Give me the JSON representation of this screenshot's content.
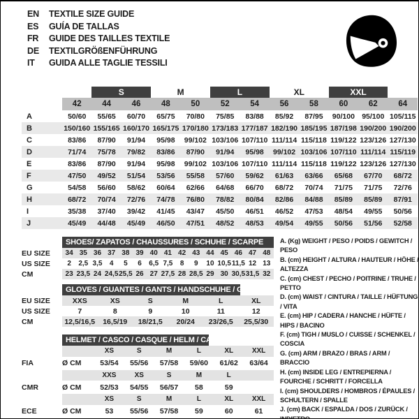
{
  "header": {
    "languages": [
      {
        "code": "EN",
        "label": "TEXTILE SIZE GUIDE"
      },
      {
        "code": "ES",
        "label": "GUÍA DE TALLAS"
      },
      {
        "code": "FR",
        "label": "GUIDE DES TAILLES TEXTILE"
      },
      {
        "code": "DE",
        "label": "TEXTILGRÖßENFÜHRUNG"
      },
      {
        "code": "IT",
        "label": "GUIDA ALLE TAGLIE TESSILI"
      }
    ],
    "logo_icon": "helmet-icon"
  },
  "colors": {
    "band_dark": "#3f3f3f",
    "numbers_row_gray": "#bfbfbf",
    "stripe_gray": "#e9e9e9",
    "subtable_gray": "#e3e3e3"
  },
  "main_table": {
    "size_bands": [
      {
        "label": "S",
        "dark": true
      },
      {
        "label": "M",
        "dark": false
      },
      {
        "label": "L",
        "dark": true
      },
      {
        "label": "XL",
        "dark": false
      },
      {
        "label": "XXL",
        "dark": true
      }
    ],
    "columns": [
      "42",
      "44",
      "46",
      "48",
      "50",
      "52",
      "54",
      "56",
      "58",
      "60",
      "62",
      "64"
    ],
    "rows": [
      {
        "letter": "A",
        "values": [
          "50/60",
          "55/65",
          "60/70",
          "65/75",
          "70/80",
          "75/85",
          "83/88",
          "85/92",
          "87/95",
          "90/100",
          "95/100",
          "105/115"
        ]
      },
      {
        "letter": "B",
        "values": [
          "150/160",
          "155/165",
          "160/170",
          "165/175",
          "170/180",
          "173/183",
          "177/187",
          "182/190",
          "185/195",
          "187/198",
          "190/200",
          "190/200"
        ]
      },
      {
        "letter": "C",
        "values": [
          "83/86",
          "87/90",
          "91/94",
          "95/98",
          "99/102",
          "103/106",
          "107/110",
          "111/114",
          "115/118",
          "119/122",
          "123/126",
          "127/130"
        ]
      },
      {
        "letter": "D",
        "values": [
          "71/74",
          "75/78",
          "79/82",
          "83/86",
          "87/90",
          "91/94",
          "95/98",
          "99/102",
          "103/106",
          "107/110",
          "111/114",
          "115/119"
        ]
      },
      {
        "letter": "E",
        "values": [
          "83/86",
          "87/90",
          "91/94",
          "95/98",
          "99/102",
          "103/106",
          "107/110",
          "111/114",
          "115/118",
          "119/122",
          "123/126",
          "127/130"
        ]
      },
      {
        "letter": "F",
        "values": [
          "47/50",
          "49/52",
          "51/54",
          "53/56",
          "55/58",
          "57/60",
          "59/62",
          "61/63",
          "63/66",
          "65/68",
          "67/70",
          "68/72"
        ]
      },
      {
        "letter": "G",
        "values": [
          "54/58",
          "56/60",
          "58/62",
          "60/64",
          "62/66",
          "64/68",
          "66/70",
          "68/72",
          "70/74",
          "71/75",
          "71/75",
          "72/76"
        ]
      },
      {
        "letter": "H",
        "values": [
          "68/72",
          "70/74",
          "72/76",
          "74/78",
          "76/80",
          "78/82",
          "80/84",
          "82/86",
          "84/88",
          "85/89",
          "85/89",
          "87/91"
        ]
      },
      {
        "letter": "I",
        "values": [
          "35/38",
          "37/40",
          "39/42",
          "41/45",
          "43/47",
          "45/50",
          "46/51",
          "46/52",
          "47/53",
          "48/54",
          "49/55",
          "50/56"
        ]
      },
      {
        "letter": "J",
        "values": [
          "45/49",
          "44/48",
          "45/49",
          "46/50",
          "47/51",
          "48/52",
          "48/53",
          "49/54",
          "49/55",
          "50/56",
          "51/56",
          "52/58"
        ]
      }
    ]
  },
  "shoes_table": {
    "title": "SHOES/ ZAPATOS / CHAUSSURES / SCHUHE / SCARPE",
    "rows": [
      {
        "label": "EU SIZE",
        "shaded": true,
        "values": [
          "34",
          "35",
          "36",
          "37",
          "38",
          "39",
          "40",
          "41",
          "42",
          "43",
          "44",
          "45",
          "46",
          "47",
          "48"
        ]
      },
      {
        "label": "US SIZE",
        "shaded": false,
        "values": [
          "2",
          "2,5",
          "3,5",
          "4",
          "5",
          "6",
          "6,5",
          "7,5",
          "8",
          "9",
          "10",
          "10,5",
          "11,5",
          "12",
          "13"
        ]
      },
      {
        "label": "CM",
        "shaded": true,
        "values": [
          "23",
          "23,5",
          "24",
          "24,5",
          "25,5",
          "26",
          "27",
          "27,5",
          "28",
          "28,5",
          "29",
          "30",
          "30,5",
          "31,5",
          "32"
        ]
      }
    ]
  },
  "gloves_table": {
    "title": "GLOVES / GUANTES / GANTS / HANDSCHUHE / GUANTI",
    "rows": [
      {
        "label": "EU SIZE",
        "shaded": true,
        "values": [
          "XXS",
          "XS",
          "S",
          "M",
          "L",
          "XL"
        ]
      },
      {
        "label": "US SIZE",
        "shaded": false,
        "values": [
          "7",
          "8",
          "9",
          "10",
          "11",
          "12"
        ]
      },
      {
        "label": "CM",
        "shaded": true,
        "values": [
          "12,5/16,5",
          "16,5/19",
          "18/21,5",
          "20/24",
          "23/26,5",
          "25,5/30"
        ]
      }
    ]
  },
  "helmet_table": {
    "title": "HELMET / CASCO / CASQUE / HELM / CASCO",
    "groups": [
      {
        "org": "FIA",
        "unit": "Ø CM",
        "sizes": [
          "XS",
          "S",
          "M",
          "L",
          "XL",
          "XXL"
        ],
        "values": [
          "53/54",
          "55/56",
          "57/58",
          "59/60",
          "61/62",
          "63/64"
        ]
      },
      {
        "org": "CMR",
        "unit": "Ø CM",
        "sizes": [
          "XXS",
          "XS",
          "S",
          "M",
          "L",
          ""
        ],
        "values": [
          "52/53",
          "54/55",
          "56/57",
          "58",
          "59",
          ""
        ]
      },
      {
        "org": "ECE",
        "unit": "Ø CM",
        "sizes": [
          "XS",
          "S",
          "M",
          "L",
          "XL",
          "XXL"
        ],
        "values": [
          "53",
          "55/56",
          "57/58",
          "59",
          "60",
          "61"
        ]
      }
    ]
  },
  "legend": [
    "A. (Kg) WEIGHT / PESO / POIDS / GEWITCH / PESO",
    "B. (cm) HEIGHT / ALTURA / HAUTEUR / HÖHE / ALTEZZA",
    "C. (cm) CHEST / PECHO / POITRINE / TRUHE / PETTO",
    "D. (cm) WAIST / CINTURA / TAILLE / HÜFTUNG / VITA",
    "E. (cm) HIP / CADERA / HANCHE / HÜFTE / HIPS / BACINO",
    "F. (cm) TIGH / MUSLO / CUISSE / SCHENKEL / COSCIA",
    "G. (cm) ARM / BRAZO / BRAS / ARM / BRACCIO",
    "H. (cm) INSIDE LEG / ENTREPIERNA / FOURCHE / SCHRITT / FORCELLA",
    "I. (cm) SHOULDERS / HOMBROS / ÉPAULES / SCHULTERN / SPALLE",
    "J. (cm) BACK / ESPALDA / DOS / ZURÜCK / INDIETRO"
  ]
}
